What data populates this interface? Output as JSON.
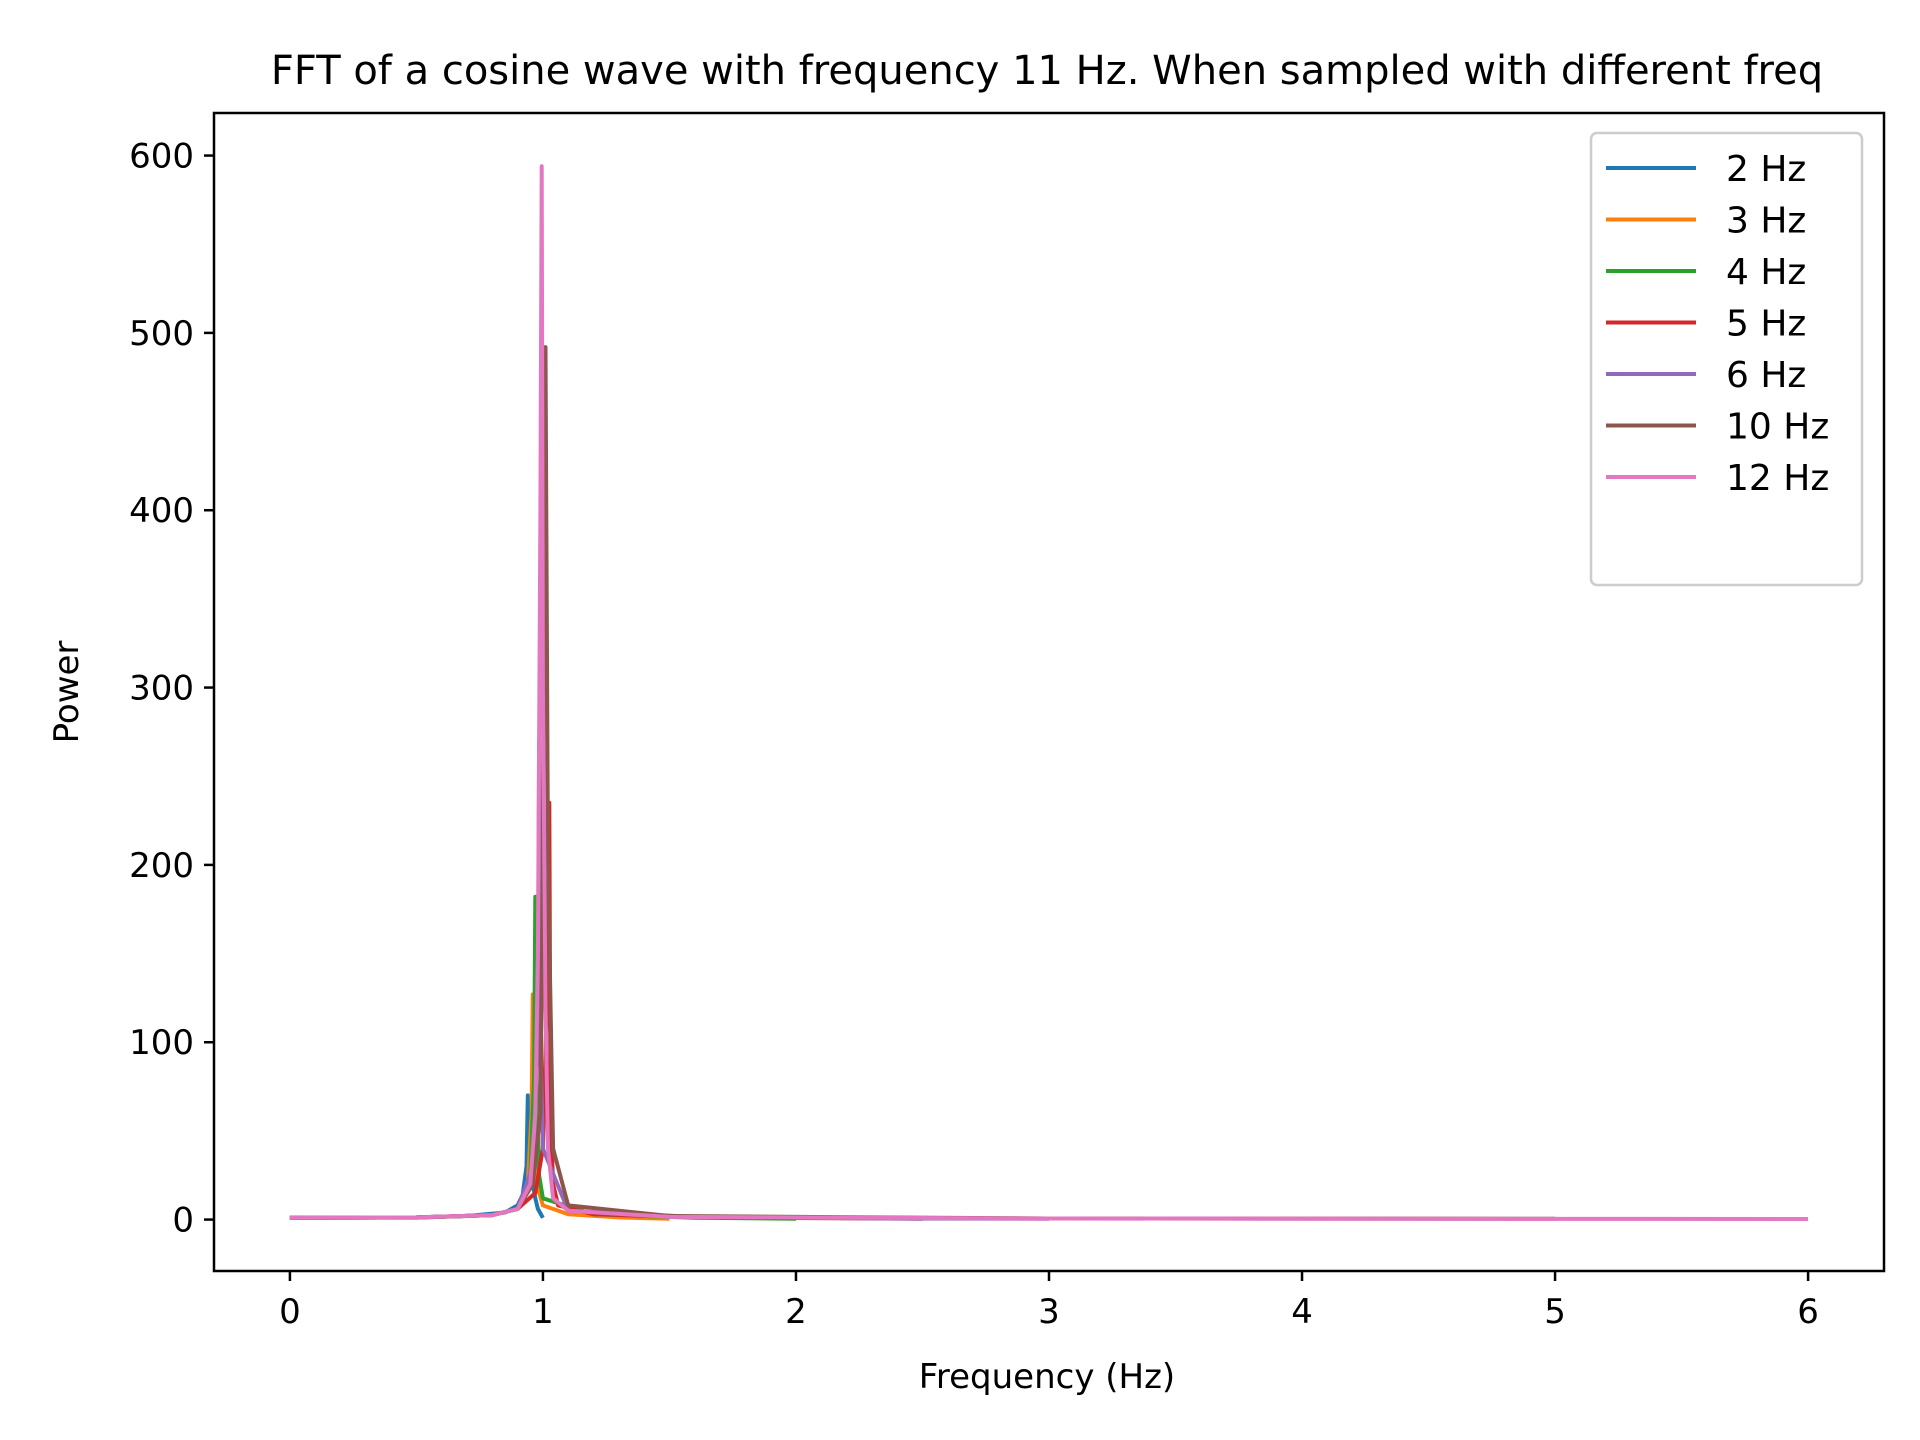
{
  "chart_data": {
    "type": "line",
    "title": "FFT of a cosine wave with frequency 11 Hz. When sampled with different freq",
    "xlabel": "Frequency (Hz)",
    "ylabel": "Power",
    "xlim": [
      -0.3,
      6.3
    ],
    "ylim": [
      -29,
      624
    ],
    "xticks": [
      0,
      1,
      2,
      3,
      4,
      5,
      6
    ],
    "yticks": [
      0,
      100,
      200,
      300,
      400,
      500,
      600
    ],
    "grid": false,
    "legend_position": "top-right",
    "series": [
      {
        "name": "2 Hz",
        "color": "#1f77b4",
        "x": [
          0,
          0.5,
          0.7,
          0.85,
          0.9,
          0.92,
          0.935,
          0.94,
          0.945,
          0.96,
          0.97,
          0.98,
          1.0
        ],
        "y": [
          1,
          1.2,
          2,
          4,
          8,
          14,
          30,
          70,
          40,
          20,
          12,
          6,
          1
        ]
      },
      {
        "name": "3 Hz",
        "color": "#ff7f0e",
        "x": [
          0,
          0.5,
          0.8,
          0.9,
          0.94,
          0.955,
          0.96,
          0.965,
          0.975,
          1.0,
          1.1,
          1.3,
          1.5
        ],
        "y": [
          1,
          1.1,
          2.5,
          6,
          20,
          60,
          127,
          60,
          20,
          8,
          3,
          1.2,
          0.5
        ]
      },
      {
        "name": "4 Hz",
        "color": "#2ca02c",
        "x": [
          0,
          0.5,
          0.8,
          0.9,
          0.95,
          0.965,
          0.97,
          0.975,
          0.985,
          1.0,
          1.2,
          1.6,
          2.0
        ],
        "y": [
          1,
          1.1,
          2.5,
          6,
          25,
          80,
          182,
          80,
          25,
          12,
          3,
          1,
          0.5
        ]
      },
      {
        "name": "5 Hz",
        "color": "#d62728",
        "x": [
          0,
          0.5,
          0.8,
          0.9,
          0.97,
          1.0,
          1.015,
          1.025,
          1.03,
          1.04,
          1.06,
          1.2,
          1.8,
          2.5
        ],
        "y": [
          1,
          1.2,
          2.5,
          6,
          15,
          40,
          120,
          235,
          60,
          20,
          8,
          3,
          1,
          0.5
        ]
      },
      {
        "name": "6 Hz",
        "color": "#9467bd",
        "x": [
          0,
          0.5,
          0.8,
          0.9,
          0.96,
          0.98,
          0.985,
          0.99,
          1.0,
          1.1,
          1.6,
          2.4,
          3.0
        ],
        "y": [
          1,
          1.2,
          2.5,
          6,
          30,
          100,
          270,
          100,
          40,
          5,
          1.5,
          0.6,
          0.5
        ]
      },
      {
        "name": "10 Hz",
        "color": "#8c564b",
        "x": [
          0,
          0.5,
          0.8,
          0.9,
          0.96,
          0.99,
          1.0,
          1.005,
          1.01,
          1.02,
          1.04,
          1.1,
          1.5,
          3.0,
          5.0
        ],
        "y": [
          1,
          1.2,
          2.5,
          6,
          20,
          60,
          200,
          420,
          492,
          200,
          40,
          8,
          2,
          0.6,
          0.5
        ]
      },
      {
        "name": "12 Hz",
        "color": "#e377c2",
        "x": [
          0,
          0.5,
          0.8,
          0.9,
          0.95,
          0.97,
          0.98,
          0.99,
          0.995,
          1.0,
          1.01,
          1.02,
          1.04,
          1.1,
          1.5,
          3.0,
          6.0
        ],
        "y": [
          1,
          1.2,
          2.5,
          6,
          20,
          60,
          150,
          400,
          594,
          300,
          120,
          40,
          12,
          5,
          1.5,
          0.6,
          0.3
        ]
      }
    ]
  }
}
